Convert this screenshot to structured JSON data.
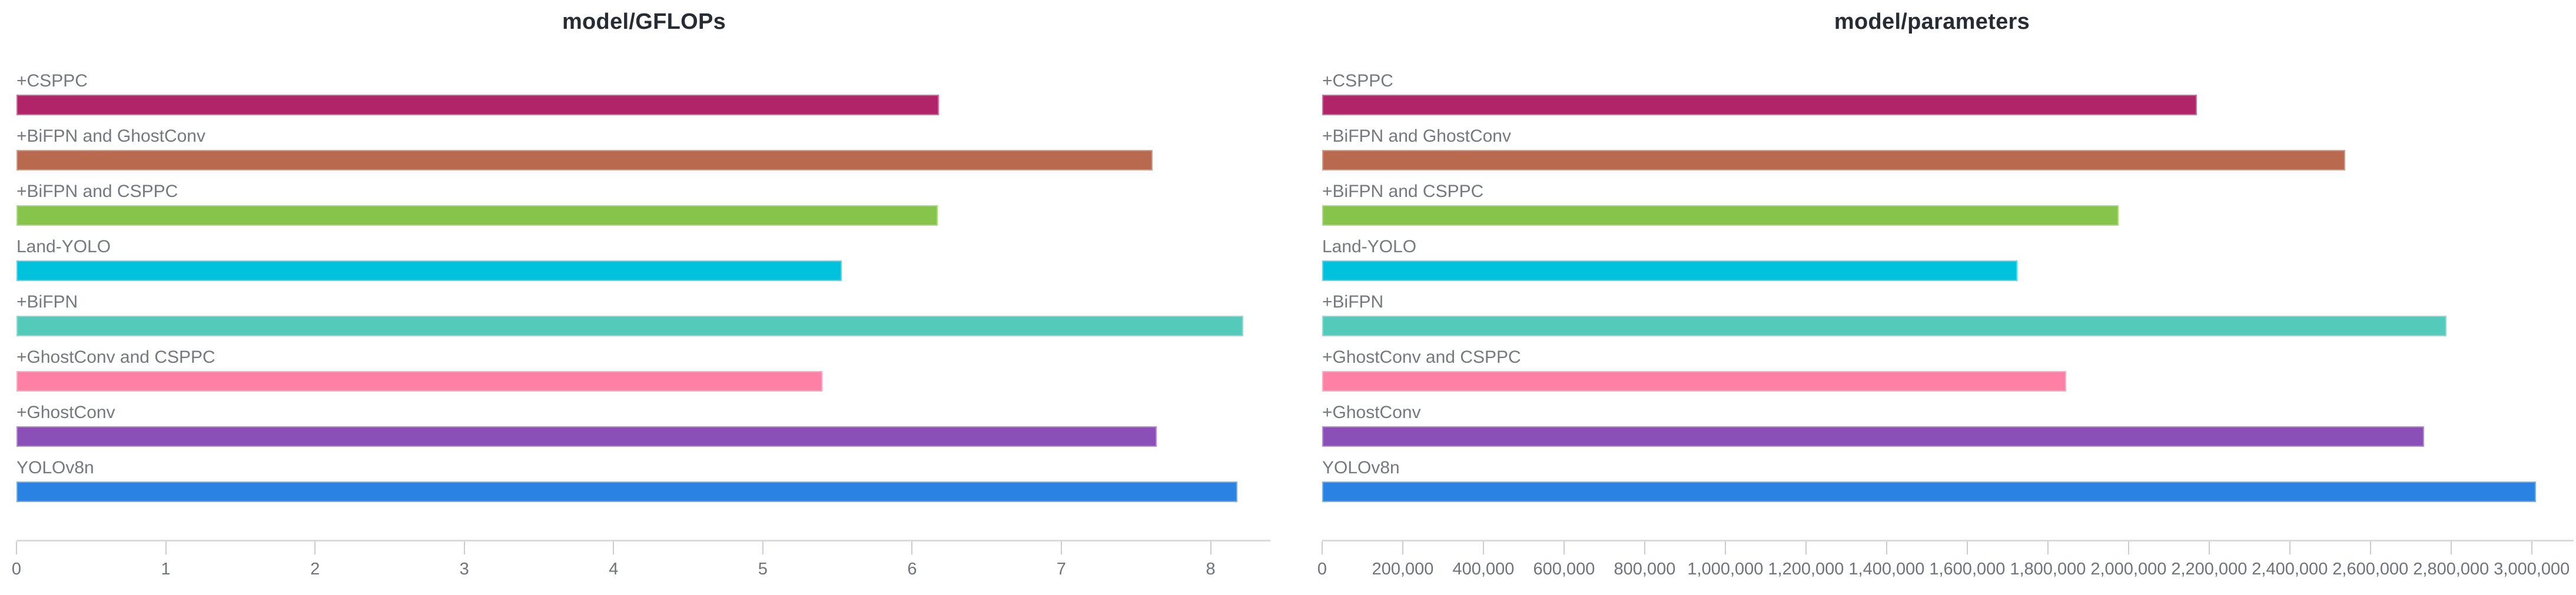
{
  "chart_data": [
    {
      "type": "bar",
      "orientation": "horizontal",
      "title": "model/GFLOPs",
      "categories": [
        "+CSPPC",
        "+BiFPN and GhostConv",
        "+BiFPN and CSPPC",
        "Land-YOLO",
        "+BiFPN",
        "+GhostConv and CSPPC",
        "+GhostConv",
        "YOLOv8n"
      ],
      "values": [
        6.18,
        7.61,
        6.17,
        5.53,
        8.22,
        5.4,
        7.64,
        8.18
      ],
      "colors": [
        "#b12468",
        "#b96a4e",
        "#87c44b",
        "#00c2dc",
        "#54cabb",
        "#fc81a4",
        "#8a50b7",
        "#2a83e3"
      ],
      "xlabel": "",
      "ylabel": "",
      "xlim": [
        0,
        8.4
      ],
      "xticks": [
        0,
        1,
        2,
        3,
        4,
        5,
        6,
        7,
        8
      ],
      "tick_labels": [
        "0",
        "1",
        "2",
        "3",
        "4",
        "5",
        "6",
        "7",
        "8"
      ],
      "grid": false,
      "legend": "none"
    },
    {
      "type": "bar",
      "orientation": "horizontal",
      "title": "model/parameters",
      "categories": [
        "+CSPPC",
        "+BiFPN and GhostConv",
        "+BiFPN and CSPPC",
        "Land-YOLO",
        "+BiFPN",
        "+GhostConv and CSPPC",
        "+GhostConv",
        "YOLOv8n"
      ],
      "values": [
        2170000,
        2538000,
        1975000,
        1724000,
        2788000,
        1845000,
        2733000,
        3011000
      ],
      "colors": [
        "#b12468",
        "#b96a4e",
        "#87c44b",
        "#00c2dc",
        "#54cabb",
        "#fc81a4",
        "#8a50b7",
        "#2a83e3"
      ],
      "xlabel": "",
      "ylabel": "",
      "xlim": [
        0,
        3104000
      ],
      "xticks": [
        0,
        200000,
        400000,
        600000,
        800000,
        1000000,
        1200000,
        1400000,
        1600000,
        1800000,
        2000000,
        2200000,
        2400000,
        2600000,
        2800000,
        3000000
      ],
      "tick_labels": [
        "0",
        "200,000",
        "400,000",
        "600,000",
        "800,000",
        "1,000,000",
        "1,200,000",
        "1,400,000",
        "1,600,000",
        "1,800,000",
        "2,000,000",
        "2,200,000",
        "2,400,000",
        "2,600,000",
        "2,800,000",
        "3,000,000"
      ],
      "grid": false,
      "legend": "none"
    }
  ],
  "ui": {
    "background_color": "#ffffff",
    "title_color": "#262c33",
    "label_color": "#74787f",
    "tick_label_color": "#6e737c",
    "axis_line_color": "#d9dadc",
    "tick_mark_color": "#c9ccd0"
  }
}
